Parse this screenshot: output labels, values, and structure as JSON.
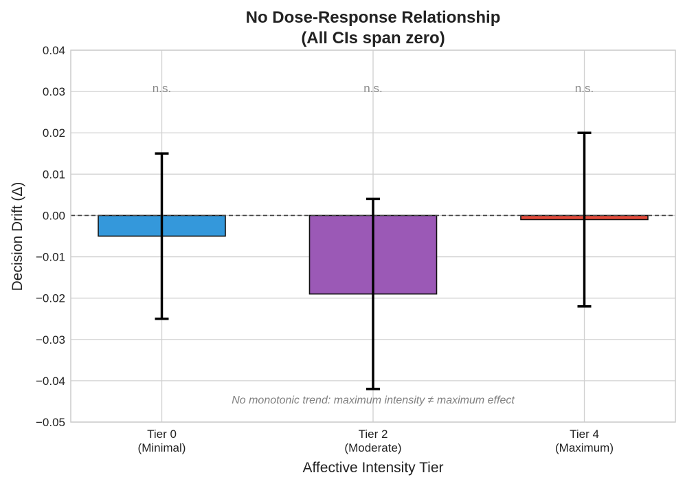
{
  "chart_data": {
    "type": "bar",
    "title_lines": [
      "No Dose-Response Relationship",
      "(All CIs span zero)"
    ],
    "xlabel": "Affective Intensity Tier",
    "ylabel": "Decision Drift (Δ)",
    "ylim": [
      -0.05,
      0.04
    ],
    "yticks": [
      0.04,
      0.03,
      0.02,
      0.01,
      0.0,
      -0.01,
      -0.02,
      -0.03,
      -0.04,
      -0.05
    ],
    "ytick_labels": [
      "0.04",
      "0.03",
      "0.02",
      "0.01",
      "0.00",
      "−0.01",
      "−0.02",
      "−0.03",
      "−0.04",
      "−0.05"
    ],
    "grid": true,
    "reference_line": 0,
    "categories": [
      {
        "line1": "Tier 0",
        "line2": "(Minimal)"
      },
      {
        "line1": "Tier 2",
        "line2": "(Moderate)"
      },
      {
        "line1": "Tier 4",
        "line2": "(Maximum)"
      }
    ],
    "values": [
      -0.005,
      -0.019,
      -0.001
    ],
    "ci_lower": [
      -0.025,
      -0.042,
      -0.022
    ],
    "ci_upper": [
      0.015,
      0.004,
      0.02
    ],
    "bar_colors": [
      "#3498db",
      "#9b59b6",
      "#e74c3c"
    ],
    "significance_labels": [
      "n.s.",
      "n.s.",
      "n.s."
    ],
    "significance_y": 0.03,
    "annotation": "No monotonic trend: maximum intensity ≠ maximum effect",
    "annotation_y": -0.0445
  }
}
